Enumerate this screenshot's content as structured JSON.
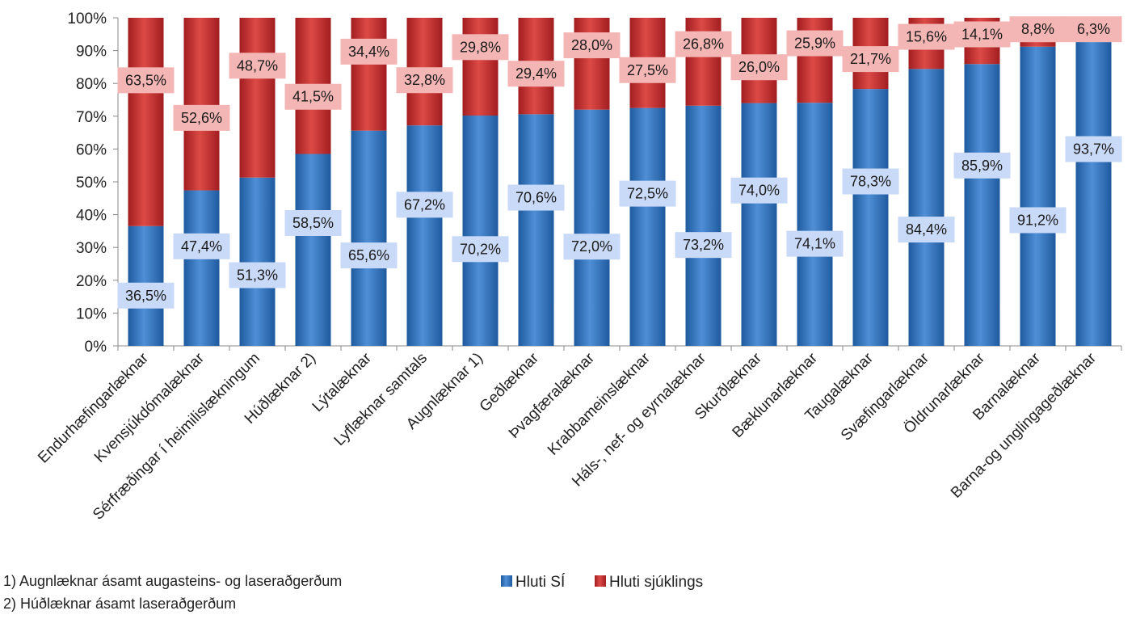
{
  "chart_data": {
    "type": "bar",
    "stacked": true,
    "percent_stacked": true,
    "title": "",
    "xlabel": "",
    "ylabel": "",
    "ylim": [
      0,
      100
    ],
    "y_ticks": [
      "0%",
      "10%",
      "20%",
      "30%",
      "40%",
      "50%",
      "60%",
      "70%",
      "80%",
      "90%",
      "100%"
    ],
    "grid": false,
    "legend_position": "bottom",
    "categories": [
      "Endurhæfingarlæknar",
      "Kvensjúkdómalæknar",
      "Sérfræðingar í heimilislækningum",
      "Húðlæknar 2)",
      "Lýtalæknar",
      "Lyflæknar samtals",
      "Augnlæknar 1)",
      "Geðlæknar",
      "Þvagfæralæknar",
      "Krabbameinslæknar",
      "Háls-, nef- og eyrnalæknar",
      "Skurðlæknar",
      "Bæklunarlæknar",
      "Taugalæknar",
      "Svæfingarlæknar",
      "Öldrunarlæknar",
      "Barnalæknar",
      "Barna-og unglingageðlæknar"
    ],
    "series": [
      {
        "name": "Hluti SÍ",
        "color": "#2e6db4",
        "label_bg": "#c9daf8",
        "values": [
          36.5,
          47.4,
          51.3,
          58.5,
          65.6,
          67.2,
          70.2,
          70.6,
          72.0,
          72.5,
          73.2,
          74.0,
          74.1,
          78.3,
          84.4,
          85.9,
          91.2,
          93.7
        ],
        "labels": [
          "36,5%",
          "47,4%",
          "51,3%",
          "58,5%",
          "65,6%",
          "67,2%",
          "70,2%",
          "70,6%",
          "72,0%",
          "72,5%",
          "73,2%",
          "74,0%",
          "74,1%",
          "78,3%",
          "84,4%",
          "85,9%",
          "91,2%",
          "93,7%"
        ]
      },
      {
        "name": "Hluti sjúklings",
        "color": "#c0282a",
        "label_bg": "#f4b6b4",
        "values": [
          63.5,
          52.6,
          48.7,
          41.5,
          34.4,
          32.8,
          29.8,
          29.4,
          28.0,
          27.5,
          26.8,
          26.0,
          25.9,
          21.7,
          15.6,
          14.1,
          8.8,
          6.3
        ],
        "labels": [
          "63,5%",
          "52,6%",
          "48,7%",
          "41,5%",
          "34,4%",
          "32,8%",
          "29,8%",
          "29,4%",
          "28,0%",
          "27,5%",
          "26,8%",
          "26,0%",
          "25,9%",
          "21,7%",
          "15,6%",
          "14,1%",
          "8,8%",
          "6,3%"
        ]
      }
    ]
  },
  "footnotes": {
    "note1": "1) Augnlæknar ásamt augasteins- og laseraðgerðum",
    "note2": "2) Húðlæknar ásamt laseraðgerðum"
  }
}
